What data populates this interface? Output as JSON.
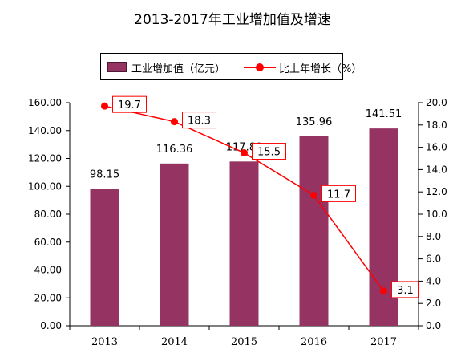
{
  "chart_data": {
    "type": "bar",
    "title": "2013-2017年工业增加值及增速",
    "categories": [
      "2013",
      "2014",
      "2015",
      "2016",
      "2017"
    ],
    "series": [
      {
        "name": "工业增加值（亿元）",
        "type": "bar",
        "axis": "left",
        "values": [
          98.15,
          116.36,
          117.8,
          135.96,
          141.51
        ],
        "labels": [
          "98.15",
          "116.36",
          "117.80",
          "135.96",
          "141.51"
        ],
        "color": "#953462"
      },
      {
        "name": "比上年增长（%）",
        "type": "line",
        "axis": "right",
        "values": [
          19.7,
          18.3,
          15.5,
          11.7,
          3.1
        ],
        "labels": [
          "19.7",
          "18.3",
          "15.5",
          "11.7",
          "3.1"
        ],
        "color": "#ff0000"
      }
    ],
    "y_left": {
      "range": [
        0,
        160
      ],
      "ticks": [
        "0.00",
        "20.00",
        "40.00",
        "60.00",
        "80.00",
        "100.00",
        "120.00",
        "140.00",
        "160.00"
      ]
    },
    "y_right": {
      "range": [
        0,
        20
      ],
      "ticks": [
        "0.0",
        "2.0",
        "4.0",
        "6.0",
        "8.0",
        "10.0",
        "12.0",
        "14.0",
        "16.0",
        "18.0",
        "20.0"
      ]
    },
    "grid": false,
    "legend_position": "top"
  }
}
